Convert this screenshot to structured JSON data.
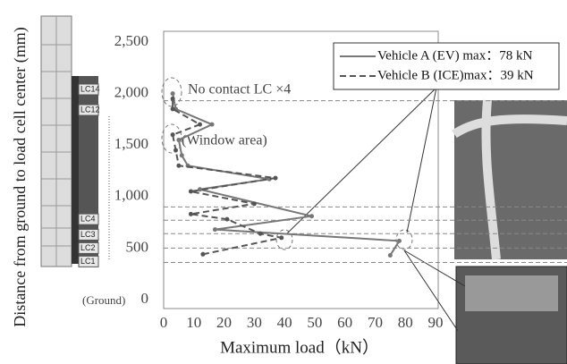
{
  "chart_data": {
    "type": "line",
    "y_label": "Distance from ground  to load cell center (mm)",
    "x_label": "Maximum load（kN）",
    "xlim": [
      0,
      90
    ],
    "xticks": [
      0,
      10,
      20,
      30,
      40,
      50,
      60,
      70,
      80,
      90
    ],
    "ylim": [
      0,
      2500
    ],
    "yticks": [
      0,
      500,
      {
        "value": 1000,
        "label": "1,000"
      },
      {
        "value": 1500,
        "label": "1,500"
      },
      {
        "value": 2000,
        "label": "2,000"
      },
      {
        "value": 2500,
        "label": "2,500"
      }
    ],
    "series": [
      {
        "name": "Vehicle A (EV) max：78 kN",
        "color": "#777777",
        "dash": false,
        "x": [
          75,
          78,
          17,
          49,
          12,
          35,
          8,
          6,
          5,
          16,
          4,
          3
        ],
        "values": [
          430,
          570,
          680,
          810,
          1070,
          1170,
          1300,
          1400,
          1550,
          1700,
          1850,
          2000
        ]
      },
      {
        "name": "Vehicle B (ICE)max：39 kN",
        "color": "#555555",
        "dash": true,
        "x": [
          13,
          39,
          32,
          21,
          9,
          30,
          9,
          37,
          5,
          4,
          3,
          12,
          3,
          3
        ],
        "values": [
          440,
          600,
          640,
          780,
          830,
          930,
          1050,
          1180,
          1300,
          1450,
          1600,
          1700,
          1850,
          1950
        ]
      }
    ],
    "reference_lines": [
      1930,
      900,
      770,
      640,
      500,
      360
    ],
    "annotations": [
      "No contact LC ×4",
      "(Window area)",
      "(Ground)"
    ],
    "load_cells": [
      "LC14",
      "LC12",
      "LC4",
      "LC3",
      "LC2",
      "LC1"
    ],
    "load_cell_heights": [
      2040,
      1840,
      780,
      630,
      500,
      370
    ]
  }
}
